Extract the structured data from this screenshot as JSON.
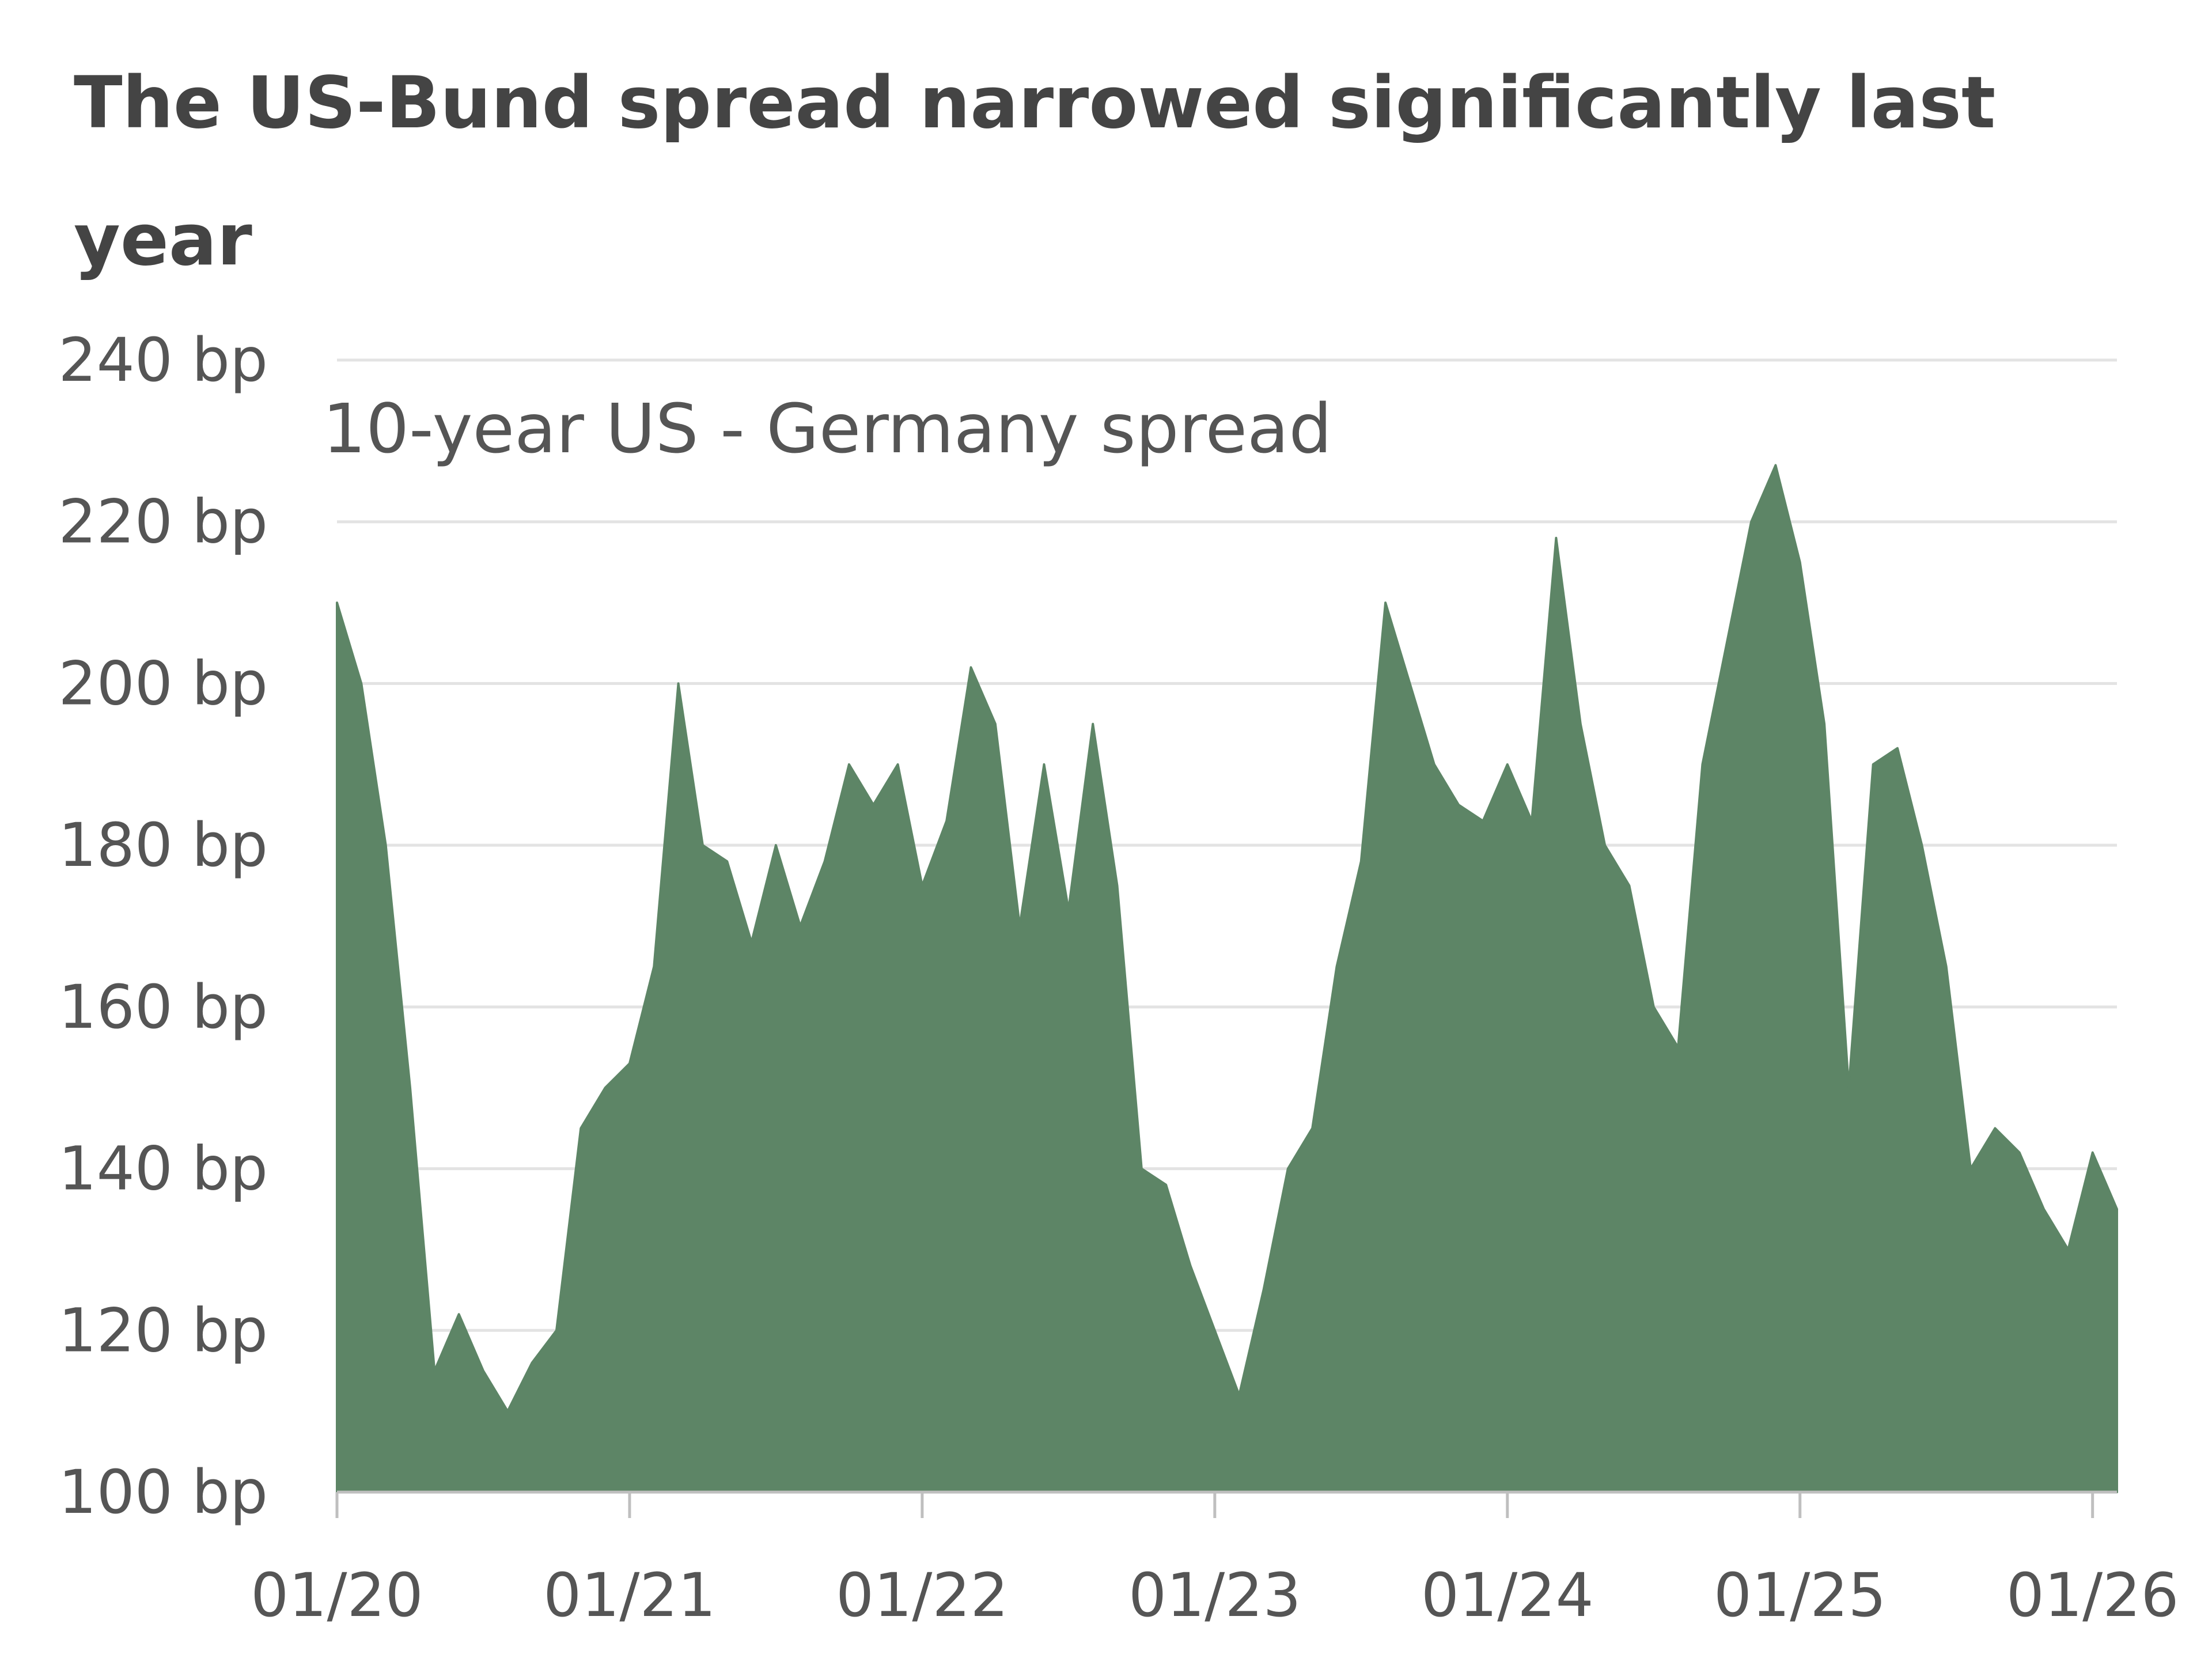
{
  "chart_data": {
    "type": "area",
    "title": "The US-Bund spread narrowed significantly last year",
    "annotation": "10-year US - Germany spread",
    "xlabel": "",
    "ylabel": "",
    "y_unit": "bp",
    "ylim": [
      100,
      240
    ],
    "yticks": [
      100,
      120,
      140,
      160,
      180,
      200,
      220,
      240
    ],
    "ytick_labels": [
      "100 bp",
      "120 bp",
      "140 bp",
      "160 bp",
      "180 bp",
      "200 bp",
      "220 bp",
      "240 bp"
    ],
    "xlim": [
      "2020-01",
      "2026-02"
    ],
    "xticks": [
      "2020-01",
      "2021-01",
      "2022-01",
      "2023-01",
      "2024-01",
      "2025-01",
      "2026-01"
    ],
    "xtick_labels": [
      "01/20",
      "01/21",
      "01/22",
      "01/23",
      "01/24",
      "01/25",
      "01/26"
    ],
    "grid": "horizontal",
    "color": "#5d8566",
    "x": [
      "2020-01",
      "2020-02",
      "2020-03",
      "2020-04",
      "2020-05",
      "2020-06",
      "2020-07",
      "2020-08",
      "2020-09",
      "2020-10",
      "2020-11",
      "2020-12",
      "2021-01",
      "2021-02",
      "2021-03",
      "2021-04",
      "2021-05",
      "2021-06",
      "2021-07",
      "2021-08",
      "2021-09",
      "2021-10",
      "2021-11",
      "2021-12",
      "2022-01",
      "2022-02",
      "2022-03",
      "2022-04",
      "2022-05",
      "2022-06",
      "2022-07",
      "2022-08",
      "2022-09",
      "2022-10",
      "2022-11",
      "2022-12",
      "2023-01",
      "2023-02",
      "2023-03",
      "2023-04",
      "2023-05",
      "2023-06",
      "2023-07",
      "2023-08",
      "2023-09",
      "2023-10",
      "2023-11",
      "2023-12",
      "2024-01",
      "2024-02",
      "2024-03",
      "2024-04",
      "2024-05",
      "2024-06",
      "2024-07",
      "2024-08",
      "2024-09",
      "2024-10",
      "2024-11",
      "2024-12",
      "2025-01",
      "2025-02",
      "2025-03",
      "2025-04",
      "2025-05",
      "2025-06",
      "2025-07",
      "2025-08",
      "2025-09",
      "2025-10",
      "2025-11",
      "2025-12",
      "2026-01",
      "2026-02"
    ],
    "values": [
      210,
      200,
      180,
      150,
      115,
      122,
      115,
      110,
      116,
      120,
      145,
      150,
      153,
      165,
      200,
      180,
      178,
      168,
      180,
      170,
      178,
      190,
      185,
      190,
      175,
      183,
      202,
      195,
      170,
      190,
      172,
      195,
      175,
      140,
      138,
      128,
      120,
      112,
      125,
      140,
      145,
      165,
      178,
      210,
      200,
      190,
      185,
      183,
      190,
      183,
      218,
      195,
      180,
      175,
      160,
      155,
      190,
      205,
      220,
      227,
      215,
      195,
      150,
      190,
      192,
      180,
      165,
      140,
      145,
      142,
      135,
      130,
      142,
      135
    ]
  }
}
